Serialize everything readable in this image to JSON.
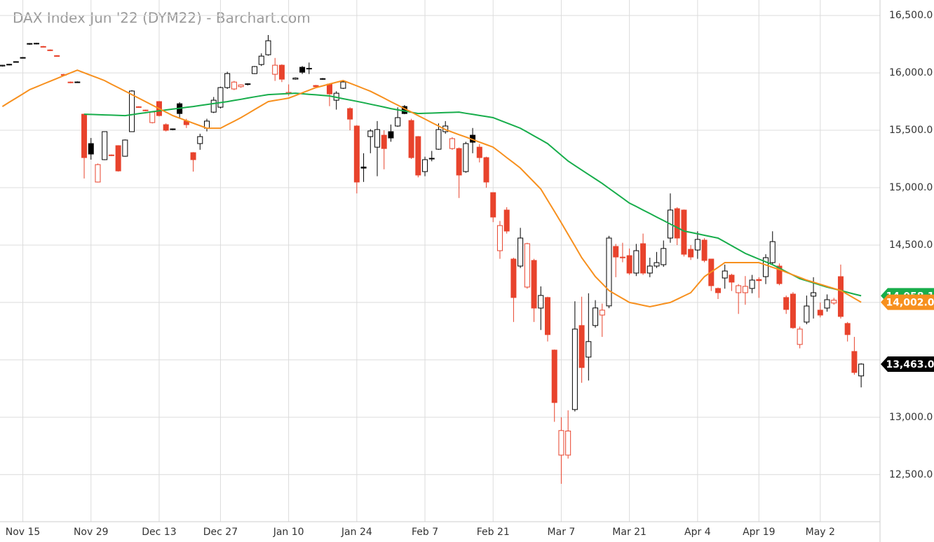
{
  "chart_data": {
    "type": "candlestick",
    "title": "DAX Index Jun '22 (DYM22) - Barchart.com",
    "categories": [
      null,
      null,
      null,
      "Nov 15",
      null,
      null,
      null,
      null,
      null,
      null,
      null,
      null,
      null,
      "Nov 29",
      null,
      null,
      null,
      null,
      null,
      null,
      null,
      null,
      null,
      "Dec 13",
      null,
      null,
      null,
      null,
      null,
      null,
      null,
      null,
      "Dec 27",
      null,
      null,
      null,
      null,
      null,
      null,
      null,
      null,
      null,
      "Jan 10",
      null,
      null,
      null,
      null,
      null,
      null,
      null,
      null,
      null,
      "Jan 24",
      null,
      null,
      null,
      null,
      null,
      null,
      null,
      null,
      null,
      "Feb 7",
      null,
      null,
      null,
      null,
      null,
      null,
      null,
      null,
      null,
      "Feb 21",
      null,
      null,
      null,
      null,
      null,
      null,
      null,
      null,
      null,
      "Mar 7",
      null,
      null,
      null,
      null,
      null,
      null,
      null,
      null,
      null,
      "Mar 21",
      null,
      null,
      null,
      null,
      null,
      null,
      null,
      null,
      null,
      "Apr 4",
      null,
      null,
      null,
      null,
      null,
      null,
      null,
      null,
      "Apr 19",
      null,
      null,
      null,
      null,
      null,
      null,
      null,
      null,
      "May 2",
      null,
      null,
      null,
      null,
      null,
      null
    ],
    "candles": [
      [
        16060,
        16070,
        16055,
        16067
      ],
      [
        16070,
        16078,
        16065,
        16075
      ],
      [
        16095,
        16102,
        16090,
        16098
      ],
      [
        16130,
        16138,
        16125,
        16134
      ],
      [
        16250,
        16260,
        16245,
        16256
      ],
      [
        16252,
        16262,
        16248,
        16258
      ],
      [
        16230,
        16235,
        16222,
        16226
      ],
      [
        16200,
        16205,
        16190,
        16195
      ],
      [
        16150,
        16155,
        16140,
        16146
      ],
      [
        15986,
        15992,
        15978,
        15982
      ],
      [
        15920,
        15925,
        15910,
        15915
      ],
      [
        15916,
        15926,
        15912,
        15921
      ],
      [
        15640,
        15645,
        15080,
        15262
      ],
      [
        15384,
        15433,
        15244,
        15293
      ],
      [
        15049,
        15210,
        15045,
        15201
      ],
      [
        15244,
        15490,
        15240,
        15488
      ],
      [
        15285,
        15290,
        15275,
        15280
      ],
      [
        15366,
        15370,
        15140,
        15146
      ],
      [
        15274,
        15420,
        15270,
        15415
      ],
      [
        15488,
        15850,
        15485,
        15842
      ],
      [
        15705,
        15710,
        15695,
        15700
      ],
      [
        15676,
        15680,
        15665,
        15671
      ],
      [
        15567,
        15665,
        15560,
        15658
      ],
      [
        15750,
        15755,
        15620,
        15628
      ],
      [
        15549,
        15560,
        15490,
        15500
      ],
      [
        15506,
        15516,
        15500,
        15512
      ],
      [
        15731,
        15745,
        15600,
        15646
      ],
      [
        15580,
        15600,
        15520,
        15549
      ],
      [
        15305,
        15310,
        15140,
        15244
      ],
      [
        15384,
        15470,
        15330,
        15445
      ],
      [
        15518,
        15600,
        15490,
        15580
      ],
      [
        15658,
        15790,
        15650,
        15762
      ],
      [
        15701,
        15880,
        15690,
        15872
      ],
      [
        15872,
        16010,
        15860,
        15994
      ],
      [
        15860,
        15930,
        15850,
        15920
      ],
      [
        15880,
        15900,
        15870,
        15895
      ],
      [
        15900,
        15910,
        15890,
        15905
      ],
      [
        15994,
        16060,
        15990,
        16055
      ],
      [
        16073,
        16170,
        16060,
        16146
      ],
      [
        16158,
        16330,
        16150,
        16280
      ],
      [
        15988,
        16130,
        15930,
        16067
      ],
      [
        16067,
        16075,
        15920,
        15945
      ],
      [
        15820,
        15900,
        15800,
        15830
      ],
      [
        15945,
        15960,
        15940,
        15955
      ],
      [
        16049,
        16060,
        15990,
        16006
      ],
      [
        16035,
        16090,
        15990,
        16040
      ],
      [
        15890,
        15895,
        15875,
        15880
      ],
      [
        15950,
        15955,
        15940,
        15945
      ],
      [
        15902,
        15910,
        15710,
        15817
      ],
      [
        15762,
        15840,
        15680,
        15823
      ],
      [
        15866,
        15930,
        15860,
        15921
      ],
      [
        15689,
        15700,
        15500,
        15597
      ],
      [
        15537,
        15545,
        14950,
        15049
      ],
      [
        15180,
        15300,
        15050,
        15170
      ],
      [
        15445,
        15510,
        15300,
        15494
      ],
      [
        15353,
        15580,
        15100,
        15506
      ],
      [
        15457,
        15500,
        15160,
        15341
      ],
      [
        15488,
        15550,
        15400,
        15433
      ],
      [
        15537,
        15700,
        15530,
        15610
      ],
      [
        15707,
        15720,
        15640,
        15646
      ],
      [
        15585,
        15600,
        15250,
        15262
      ],
      [
        15445,
        15450,
        15090,
        15110
      ],
      [
        15140,
        15270,
        15100,
        15244
      ],
      [
        15250,
        15320,
        15230,
        15256
      ],
      [
        15335,
        15560,
        15330,
        15506
      ],
      [
        15488,
        15580,
        15470,
        15537
      ],
      [
        15341,
        15440,
        15330,
        15427
      ],
      [
        15341,
        15350,
        14910,
        15110
      ],
      [
        15140,
        15400,
        15130,
        15384
      ],
      [
        15457,
        15520,
        15300,
        15396
      ],
      [
        15353,
        15380,
        15220,
        15262
      ],
      [
        15262,
        15270,
        15000,
        15049
      ],
      [
        14957,
        14960,
        14700,
        14744
      ],
      [
        14451,
        14710,
        14380,
        14670
      ],
      [
        14805,
        14830,
        14600,
        14622
      ],
      [
        14378,
        14390,
        13830,
        14043
      ],
      [
        14317,
        14650,
        14300,
        14561
      ],
      [
        14134,
        14520,
        14120,
        14512
      ],
      [
        14366,
        14380,
        13830,
        13951
      ],
      [
        13951,
        14140,
        13760,
        14061
      ],
      [
        14043,
        14050,
        13660,
        13720
      ],
      [
        13585,
        13590,
        12960,
        13128
      ],
      [
        12670,
        13000,
        12420,
        12884
      ],
      [
        12670,
        13060,
        12640,
        12880
      ],
      [
        13067,
        14010,
        13050,
        13768
      ],
      [
        13799,
        14050,
        13300,
        13433
      ],
      [
        13524,
        14080,
        13320,
        13659
      ],
      [
        13799,
        14020,
        13780,
        13952
      ],
      [
        13890,
        13990,
        13700,
        13933
      ],
      [
        13970,
        14580,
        13950,
        14561
      ],
      [
        14488,
        14510,
        14220,
        14396
      ],
      [
        14395,
        14520,
        14350,
        14390
      ],
      [
        14408,
        14470,
        14240,
        14256
      ],
      [
        14256,
        14510,
        14230,
        14451
      ],
      [
        14512,
        14600,
        14240,
        14256
      ],
      [
        14256,
        14390,
        14220,
        14317
      ],
      [
        14317,
        14440,
        14300,
        14347
      ],
      [
        14329,
        14540,
        14310,
        14470
      ],
      [
        14561,
        14950,
        14520,
        14805
      ],
      [
        14817,
        14830,
        14500,
        14561
      ],
      [
        14805,
        14810,
        14400,
        14420
      ],
      [
        14463,
        14500,
        14370,
        14396
      ],
      [
        14457,
        14620,
        14380,
        14549
      ],
      [
        14543,
        14560,
        14350,
        14366
      ],
      [
        14378,
        14380,
        14100,
        14146
      ],
      [
        14122,
        14130,
        14030,
        14085
      ],
      [
        14213,
        14330,
        14120,
        14274
      ],
      [
        14238,
        14250,
        14100,
        14177
      ],
      [
        14085,
        14160,
        13900,
        14146
      ],
      [
        14085,
        14230,
        13980,
        14140
      ],
      [
        14122,
        14240,
        14080,
        14195
      ],
      [
        14200,
        14220,
        14040,
        14190
      ],
      [
        14225,
        14420,
        14160,
        14390
      ],
      [
        14347,
        14620,
        14330,
        14530
      ],
      [
        14317,
        14340,
        14150,
        14164
      ],
      [
        14043,
        14060,
        13900,
        13939
      ],
      [
        14073,
        14090,
        13770,
        13780
      ],
      [
        13634,
        13790,
        13600,
        13768
      ],
      [
        13829,
        14060,
        13810,
        13969
      ],
      [
        14055,
        14220,
        13860,
        14085
      ],
      [
        13933,
        14000,
        13870,
        13890
      ],
      [
        13951,
        14070,
        13920,
        14024
      ],
      [
        13995,
        14040,
        13980,
        14020
      ],
      [
        14225,
        14330,
        13860,
        13878
      ],
      [
        13817,
        13830,
        13660,
        13720
      ],
      [
        13573,
        13700,
        13370,
        13390
      ],
      [
        13360,
        13470,
        13260,
        13463
      ]
    ],
    "up_color": "#000000",
    "down_color": "#e8432c",
    "last_label": "13,463.0",
    "last_label_color": "#000000",
    "moving_averages": [
      {
        "color": "#17ad4b",
        "last_label": "14,058.1",
        "values": [
          null,
          null,
          null,
          null,
          null,
          null,
          null,
          null,
          null,
          null,
          null,
          null,
          15640,
          15638,
          15636,
          15634,
          15632,
          15630,
          15628,
          15636,
          15645,
          15653,
          15662,
          15670,
          15677,
          15685,
          15692,
          15700,
          15707,
          15716,
          15724,
          15733,
          15741,
          15750,
          15760,
          15770,
          15781,
          15791,
          15801,
          15811,
          15814,
          15817,
          15820,
          15823,
          15818,
          15813,
          15809,
          15804,
          15799,
          15787,
          15775,
          15764,
          15752,
          15740,
          15727,
          15715,
          15702,
          15689,
          15678,
          15668,
          15657,
          15646,
          15648,
          15650,
          15652,
          15654,
          15656,
          15658,
          15648,
          15639,
          15629,
          15620,
          15610,
          15587,
          15564,
          15541,
          15518,
          15485,
          15451,
          15418,
          15384,
          15333,
          15283,
          15232,
          15193,
          15154,
          15115,
          15076,
          15037,
          14994,
          14952,
          14909,
          14866,
          14836,
          14805,
          14775,
          14744,
          14714,
          14683,
          14653,
          14622,
          14610,
          14598,
          14585,
          14573,
          14561,
          14528,
          14494,
          14461,
          14427,
          14403,
          14378,
          14354,
          14329,
          14299,
          14268,
          14238,
          14207,
          14189,
          14171,
          14152,
          14134,
          14119,
          14104,
          14088,
          14073,
          14058.1
        ]
      },
      {
        "color": "#f7901e",
        "last_label": "14,002.0",
        "values": [
          15707,
          15744,
          15780,
          15817,
          15854,
          15878,
          15903,
          15927,
          15951,
          15976,
          16000,
          16024,
          16001,
          15978,
          15956,
          15933,
          15902,
          15872,
          15841,
          15811,
          15780,
          15750,
          15719,
          15689,
          15658,
          15628,
          15606,
          15584,
          15562,
          15540,
          15518,
          15518,
          15518,
          15549,
          15579,
          15610,
          15645,
          15680,
          15715,
          15750,
          15760,
          15770,
          15780,
          15803,
          15826,
          15849,
          15872,
          15887,
          15903,
          15918,
          15933,
          15910,
          15887,
          15863,
          15840,
          15810,
          15780,
          15749,
          15719,
          15689,
          15659,
          15628,
          15598,
          15567,
          15537,
          15506,
          15484,
          15462,
          15441,
          15419,
          15397,
          15375,
          15353,
          15308,
          15262,
          15217,
          15171,
          15110,
          15049,
          14988,
          14890,
          14793,
          14695,
          14593,
          14492,
          14390,
          14308,
          14225,
          14165,
          14104,
          14069,
          14035,
          14000,
          13988,
          13975,
          13963,
          13975,
          13988,
          14000,
          14028,
          14057,
          14085,
          14155,
          14225,
          14266,
          14306,
          14347,
          14347,
          14347,
          14347,
          14347,
          14347,
          14327,
          14306,
          14286,
          14263,
          14240,
          14218,
          14195,
          14177,
          14159,
          14140,
          14122,
          14104,
          14070,
          14036,
          14002
        ]
      }
    ],
    "ylim": [
      12090,
      16635
    ],
    "yticks": [
      {
        "value": 12500,
        "label": "12,500.0"
      },
      {
        "value": 13000,
        "label": "13,000.0"
      },
      13500,
      14000,
      {
        "value": 14500,
        "label": "14,500.0"
      },
      {
        "value": 15000,
        "label": "15,000.0"
      },
      {
        "value": 15500,
        "label": "15,500.0"
      },
      {
        "value": 16000,
        "label": "16,000.0"
      },
      {
        "value": 16500,
        "label": "16,500.0"
      }
    ],
    "grid": true
  }
}
